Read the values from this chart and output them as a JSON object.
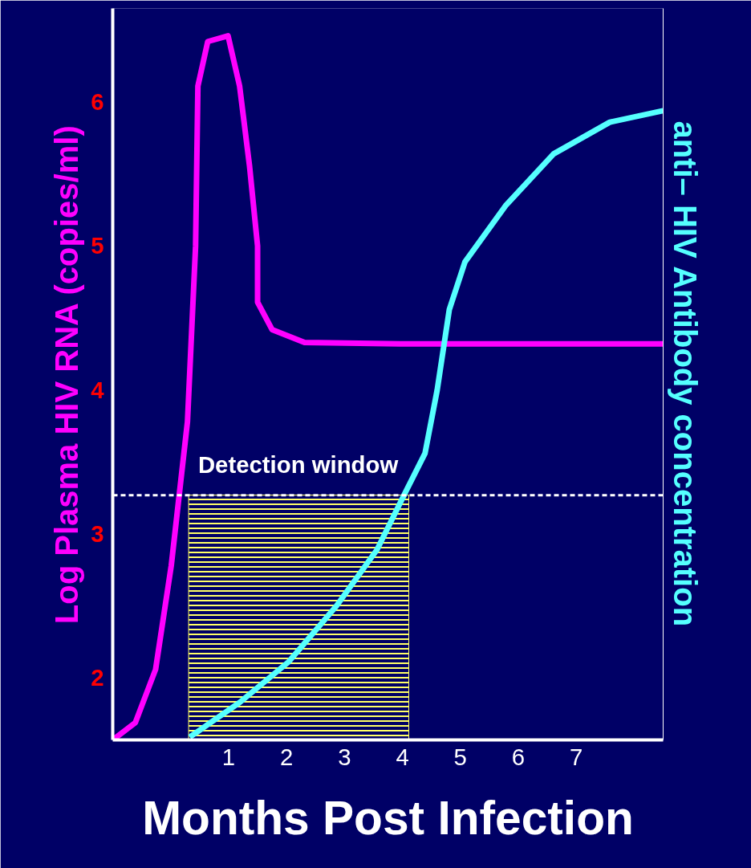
{
  "chart_data": {
    "type": "line",
    "xlabel": "Months Post Infection",
    "ylabel": "Log Plasma HIV RNA (copies/ml)",
    "y2label": "anti– HIV Antibody concentration",
    "xlim": [
      -1,
      8.5
    ],
    "ylim": [
      1.57,
      6.65
    ],
    "xticks": [
      1,
      2,
      3,
      4,
      5,
      6,
      7
    ],
    "yticks": [
      2,
      3,
      4,
      5,
      6
    ],
    "grid": false,
    "line_style": "solid",
    "marker": "none",
    "series": [
      {
        "color": "#ff00ff",
        "x": [
          -1.0,
          -0.61,
          -0.26,
          0.01,
          0.29,
          0.43,
          0.47,
          0.64,
          0.99,
          1.19,
          1.36,
          1.5,
          1.5,
          1.75,
          2.31,
          3.97,
          8.5
        ],
        "values": [
          1.57,
          1.69,
          2.06,
          2.78,
          3.78,
          5.0,
          6.11,
          6.42,
          6.46,
          6.11,
          5.56,
          5.0,
          4.61,
          4.42,
          4.33,
          4.32,
          4.32
        ]
      },
      {
        "color": "#55ffff",
        "x": [
          0.33,
          1.19,
          2.03,
          2.86,
          3.56,
          4.04,
          4.39,
          4.6,
          4.81,
          5.08,
          5.78,
          6.61,
          7.58,
          8.5
        ],
        "values": [
          1.59,
          1.83,
          2.11,
          2.5,
          2.89,
          3.28,
          3.56,
          4.0,
          4.56,
          4.89,
          5.28,
          5.64,
          5.86,
          5.94
        ]
      }
    ],
    "ref_lines": [
      {
        "axis": "y",
        "value": 3.27,
        "label": "Detection window",
        "color": "#ffffff",
        "line_style": "dashed"
      }
    ],
    "bands": [
      {
        "axis": "x",
        "from": 0.31,
        "to": 4.11,
        "label": null,
        "color": "#ffff66"
      }
    ]
  }
}
